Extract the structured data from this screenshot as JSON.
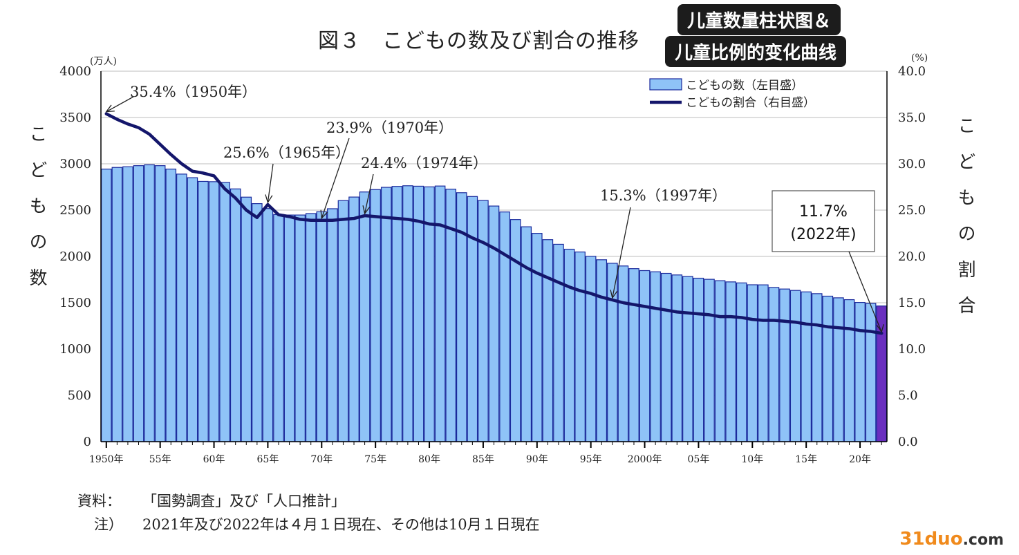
{
  "title": "図３　こどもの数及び割合の推移",
  "overlay_badges": [
    "儿童数量柱状图＆",
    "儿童比例的变化曲线"
  ],
  "unit_left": "(万人)",
  "unit_right": "(%)",
  "axis_label_left": "こどもの数",
  "axis_label_right": "こどもの割合",
  "notes": {
    "source_label": "資料：",
    "source_text": "「国勢調査」及び「人口推計」",
    "note_label": "注）",
    "note_text": "2021年及び2022年は４月１日現在、その他は10月１日現在"
  },
  "watermark": {
    "main": "31duo",
    "suffix": ".com"
  },
  "chart_data": {
    "type": "bar",
    "x": [
      1950,
      1951,
      1952,
      1953,
      1954,
      1955,
      1956,
      1957,
      1958,
      1959,
      1960,
      1961,
      1962,
      1963,
      1964,
      1965,
      1966,
      1967,
      1968,
      1969,
      1970,
      1971,
      1972,
      1973,
      1974,
      1975,
      1976,
      1977,
      1978,
      1979,
      1980,
      1981,
      1982,
      1983,
      1984,
      1985,
      1986,
      1987,
      1988,
      1989,
      1990,
      1991,
      1992,
      1993,
      1994,
      1995,
      1996,
      1997,
      1998,
      1999,
      2000,
      2001,
      2002,
      2003,
      2004,
      2005,
      2006,
      2007,
      2008,
      2009,
      2010,
      2011,
      2012,
      2013,
      2014,
      2015,
      2016,
      2017,
      2018,
      2019,
      2020,
      2021,
      2022
    ],
    "x_tick_labels": [
      {
        "x": 1950,
        "label": "1950年"
      },
      {
        "x": 1955,
        "label": "55年"
      },
      {
        "x": 1960,
        "label": "60年"
      },
      {
        "x": 1965,
        "label": "65年"
      },
      {
        "x": 1970,
        "label": "70年"
      },
      {
        "x": 1975,
        "label": "75年"
      },
      {
        "x": 1980,
        "label": "80年"
      },
      {
        "x": 1985,
        "label": "85年"
      },
      {
        "x": 1990,
        "label": "90年"
      },
      {
        "x": 1995,
        "label": "95年"
      },
      {
        "x": 2000,
        "label": "2000年"
      },
      {
        "x": 2005,
        "label": "05年"
      },
      {
        "x": 2010,
        "label": "10年"
      },
      {
        "x": 2015,
        "label": "15年"
      },
      {
        "x": 2020,
        "label": "20年"
      }
    ],
    "series": [
      {
        "name": "こどもの数（左目盛）",
        "axis": "left",
        "color": "#8fc3f7",
        "highlight_color": "#6a2fbf",
        "highlight_x": 2022,
        "values": [
          2943,
          2961,
          2968,
          2980,
          2989,
          2980,
          2943,
          2889,
          2850,
          2810,
          2807,
          2799,
          2729,
          2640,
          2570,
          2517,
          2452,
          2447,
          2447,
          2463,
          2482,
          2515,
          2603,
          2641,
          2696,
          2722,
          2746,
          2756,
          2763,
          2758,
          2751,
          2760,
          2726,
          2688,
          2647,
          2604,
          2544,
          2480,
          2398,
          2320,
          2249,
          2181,
          2131,
          2078,
          2048,
          2001,
          1964,
          1926,
          1897,
          1868,
          1847,
          1834,
          1817,
          1800,
          1784,
          1765,
          1753,
          1738,
          1725,
          1714,
          1694,
          1693,
          1665,
          1648,
          1633,
          1617,
          1598,
          1571,
          1553,
          1533,
          1503,
          1493,
          1465
        ]
      },
      {
        "name": "こどもの割合（右目盛）",
        "axis": "right",
        "color": "#14166b",
        "type": "line",
        "values": [
          35.4,
          34.8,
          34.3,
          33.9,
          33.2,
          32.1,
          31.0,
          30.0,
          29.2,
          29.0,
          28.7,
          27.3,
          26.3,
          25.0,
          24.2,
          25.6,
          24.5,
          24.3,
          24.0,
          23.9,
          23.9,
          23.9,
          24.0,
          24.1,
          24.4,
          24.3,
          24.2,
          24.1,
          24.0,
          23.8,
          23.5,
          23.4,
          23.0,
          22.6,
          22.0,
          21.5,
          20.9,
          20.2,
          19.5,
          18.8,
          18.2,
          17.7,
          17.2,
          16.7,
          16.3,
          16.0,
          15.6,
          15.3,
          15.0,
          14.8,
          14.6,
          14.4,
          14.2,
          14.0,
          13.9,
          13.8,
          13.7,
          13.5,
          13.5,
          13.4,
          13.2,
          13.1,
          13.1,
          13.0,
          12.9,
          12.7,
          12.6,
          12.4,
          12.3,
          12.2,
          12.0,
          11.9,
          11.7
        ]
      }
    ],
    "y_left": {
      "min": 0,
      "max": 4000,
      "ticks": [
        0,
        500,
        1000,
        1500,
        2000,
        2500,
        3000,
        3500,
        4000
      ]
    },
    "y_right": {
      "min": 0,
      "max": 40,
      "tick_labels": [
        "0.0",
        "5.0",
        "10.0",
        "15.0",
        "20.0",
        "25.0",
        "30.0",
        "35.0",
        "40.0"
      ]
    },
    "grid": true,
    "legend": {
      "position": "top-right"
    },
    "annotations": [
      {
        "text": "35.4%（1950年）",
        "x": 1950,
        "value": 35.4
      },
      {
        "text": "25.6%（1965年）",
        "x": 1965,
        "value": 25.6
      },
      {
        "text": "23.9%（1970年）",
        "x": 1970,
        "value": 23.9
      },
      {
        "text": "24.4%（1974年）",
        "x": 1974,
        "value": 24.4
      },
      {
        "text": "15.3%（1997年）",
        "x": 1997,
        "value": 15.3
      },
      {
        "text": "11.7%",
        "subtext": "(2022年)",
        "x": 2022,
        "value": 11.7,
        "boxed": true
      }
    ]
  }
}
